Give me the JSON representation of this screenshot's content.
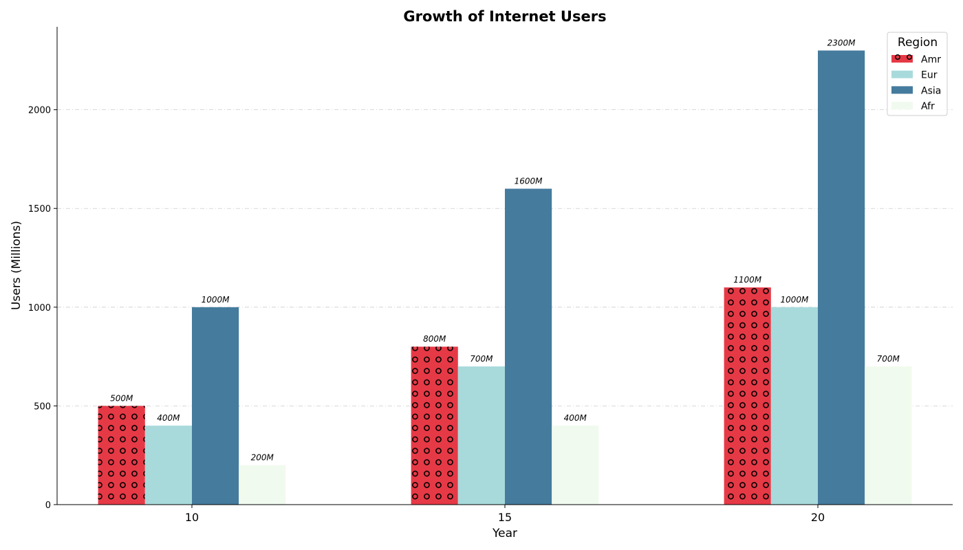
{
  "chart_data": {
    "type": "bar",
    "title": "Growth of Internet Users",
    "xlabel": "Year",
    "ylabel": "Users (Millions)",
    "categories": [
      "10",
      "15",
      "20"
    ],
    "ylim": [
      0,
      2420
    ],
    "yticks": [
      0,
      500,
      1000,
      1500,
      2000
    ],
    "grid": "y",
    "legend": {
      "title": "Region",
      "placement": "top-right"
    },
    "label_suffix": "M",
    "series": [
      {
        "name": "Amr",
        "values": [
          500,
          800,
          1100
        ],
        "color": "#e63946",
        "hatch": "circles"
      },
      {
        "name": "Eur",
        "values": [
          400,
          700,
          1000
        ],
        "color": "#a8dadc"
      },
      {
        "name": "Asia",
        "values": [
          1000,
          1600,
          2300
        ],
        "color": "#457b9d"
      },
      {
        "name": "Afr",
        "values": [
          200,
          400,
          700
        ],
        "color": "#f1faee"
      }
    ]
  }
}
